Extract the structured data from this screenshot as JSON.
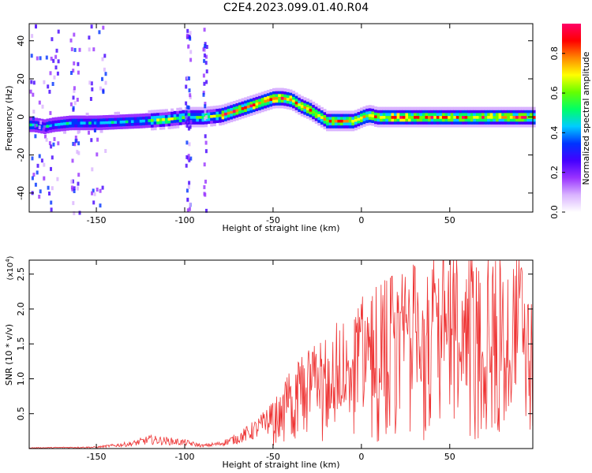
{
  "title": "C2E4.2023.099.01.40.R04",
  "chart_data": [
    {
      "type": "heatmap",
      "xlabel": "Height of straight line (km)",
      "ylabel": "Frequency (Hz)",
      "xlim": [
        -188,
        97
      ],
      "ylim": [
        -50,
        49
      ],
      "xticks": [
        -150,
        -100,
        -50,
        0,
        50
      ],
      "yticks": [
        -40,
        -20,
        0,
        20,
        40
      ],
      "colorbar": {
        "label": "Normalized spectral amplitude",
        "range": [
          0.0,
          0.95
        ],
        "ticks": [
          "0.0",
          "0.2",
          "0.4",
          "0.6",
          "0.8"
        ],
        "colors": [
          "#ffffff",
          "#d9b3ff",
          "#9933ff",
          "#4400ff",
          "#0033ff",
          "#00ccff",
          "#00ff66",
          "#66ff00",
          "#ffff00",
          "#ff8800",
          "#ff0000",
          "#ff0066"
        ]
      },
      "ridge": {
        "x": [
          -186,
          -180,
          -175,
          -165,
          -150,
          -125,
          -110,
          -100,
          -90,
          -80,
          -70,
          -60,
          -50,
          -45,
          -40,
          -35,
          -30,
          -25,
          -20,
          -10,
          -5,
          0,
          3,
          5,
          8,
          20,
          50,
          75,
          97
        ],
        "y": [
          -4,
          -5,
          -4,
          -3,
          -3,
          -2,
          -1,
          0,
          0,
          1,
          4,
          7,
          10,
          10,
          9,
          6,
          4,
          1,
          -2,
          -2,
          -2,
          0,
          1,
          1,
          0,
          0,
          0,
          0,
          0
        ]
      },
      "grid": false
    },
    {
      "type": "line",
      "xlabel": "Height of straight line (km)",
      "ylabel": "SNR (10 * v/v)",
      "yexponent": "(x10",
      "yexponent_power": "4",
      "xlim": [
        -188,
        97
      ],
      "ylim": [
        0,
        27000
      ],
      "xticks": [
        -150,
        -100,
        -50,
        0,
        50
      ],
      "yticks": [
        5000,
        10000,
        15000,
        20000,
        25000
      ],
      "ytick_labels": [
        "0.5",
        "1.0",
        "1.5",
        "2.0",
        "2.5"
      ],
      "color": "#ee3333",
      "envelope": {
        "x": [
          -188,
          -150,
          -130,
          -120,
          -100,
          -90,
          -80,
          -70,
          -60,
          -50,
          -45,
          -40,
          -30,
          -20,
          -10,
          0,
          10,
          20,
          30,
          40,
          50,
          60,
          70,
          80,
          90,
          97
        ],
        "y": [
          100,
          200,
          700,
          1300,
          900,
          400,
          700,
          1500,
          2800,
          4500,
          6000,
          7500,
          9500,
          11000,
          13000,
          14500,
          16000,
          17200,
          18200,
          19000,
          19500,
          19000,
          18700,
          18500,
          18900,
          19000
        ]
      },
      "grid": false
    }
  ]
}
